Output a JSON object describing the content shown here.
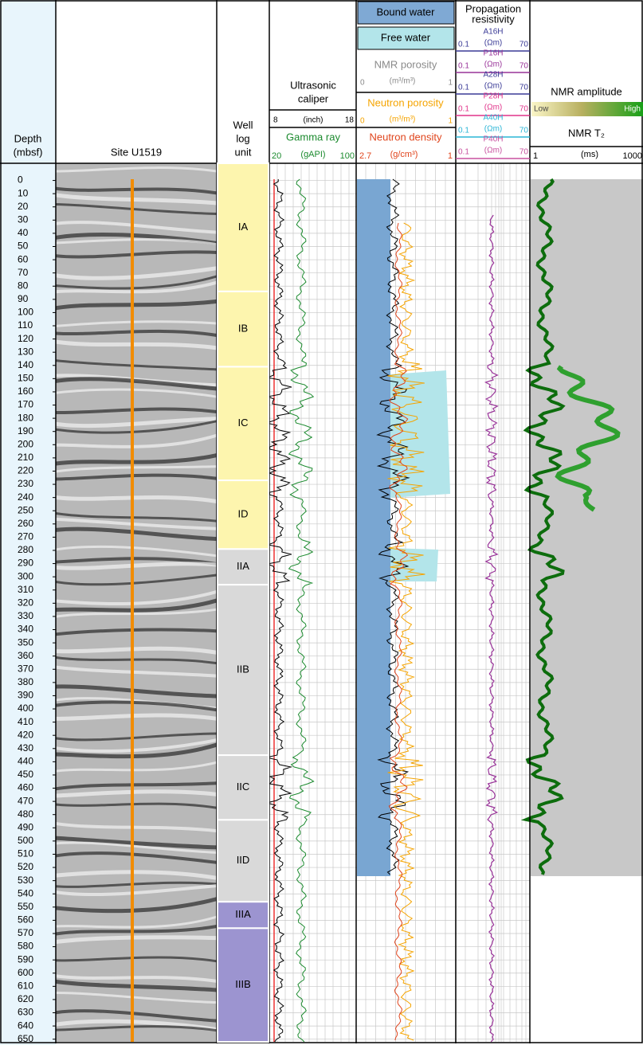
{
  "depth": {
    "title": [
      "Depth",
      "(mbsf)"
    ],
    "ylim": [
      -13,
      652
    ],
    "ticks": [
      0,
      10,
      20,
      30,
      40,
      50,
      60,
      70,
      80,
      90,
      100,
      110,
      120,
      130,
      140,
      150,
      160,
      170,
      180,
      190,
      200,
      210,
      220,
      230,
      240,
      250,
      260,
      270,
      280,
      290,
      300,
      310,
      320,
      330,
      340,
      350,
      360,
      370,
      380,
      390,
      400,
      410,
      420,
      430,
      440,
      450,
      460,
      470,
      480,
      490,
      500,
      510,
      520,
      530,
      540,
      550,
      560,
      570,
      580,
      590,
      600,
      610,
      620,
      630,
      640,
      650
    ]
  },
  "site": "Site U1519",
  "unit_title": [
    "Well",
    "log",
    "unit"
  ],
  "units": [
    {
      "label": "IA",
      "top": -13,
      "base": 84,
      "color": "#fdf5ae"
    },
    {
      "label": "IB",
      "top": 84,
      "base": 141,
      "color": "#fdf5ae"
    },
    {
      "label": "IC",
      "top": 141,
      "base": 227,
      "color": "#fdf5ae"
    },
    {
      "label": "ID",
      "top": 227,
      "base": 279,
      "color": "#fdf5ae"
    },
    {
      "label": "IIA",
      "top": 279,
      "base": 306,
      "color": "#d9d9d9"
    },
    {
      "label": "IIB",
      "top": 306,
      "base": 435,
      "color": "#d9d9d9"
    },
    {
      "label": "IIC",
      "top": 435,
      "base": 484,
      "color": "#d9d9d9"
    },
    {
      "label": "IID",
      "top": 484,
      "base": 546,
      "color": "#d9d9d9"
    },
    {
      "label": "IIIA",
      "top": 546,
      "base": 566,
      "color": "#9c94d0"
    },
    {
      "label": "IIIB",
      "top": 566,
      "base": 652,
      "color": "#9c94d0"
    }
  ],
  "caliper": {
    "title": [
      "Ultrasonic",
      "caliper"
    ],
    "min": 8,
    "unit": "(inch)",
    "max": 18
  },
  "gamma": {
    "title": "Gamma ray",
    "min": 20,
    "unit": "(gAPI)",
    "max": 100
  },
  "nmr": {
    "bound": "Bound water",
    "free": "Free water",
    "porosity": "NMR porosity",
    "por_min": 0,
    "por_unit": "(m³/m³)",
    "por_max": 1,
    "neutron": "Neutron porosity",
    "neu_min": 0,
    "neu_unit": "(m³/m³)",
    "neu_max": 1,
    "density": "Neutron density",
    "den_min": 2.7,
    "den_unit": "(g/cm³)",
    "den_max": 1
  },
  "resistivity": {
    "title": [
      "Propagation",
      "resistivity"
    ],
    "curves": [
      {
        "name": "A16H",
        "color": "#3a3a96",
        "min": 0.1,
        "unit": "(Ωm)",
        "max": 70
      },
      {
        "name": "P16H",
        "color": "#993399",
        "min": 0.1,
        "unit": "(Ωm)",
        "max": 70
      },
      {
        "name": "A28H",
        "color": "#3a3a96",
        "min": 0.1,
        "unit": "(Ωm)",
        "max": 70
      },
      {
        "name": "P28H",
        "color": "#e0338a",
        "min": 0.1,
        "unit": "(Ωm)",
        "max": 70
      },
      {
        "name": "A40H",
        "color": "#2ab5d6",
        "min": 0.1,
        "unit": "(Ωm)",
        "max": 70
      },
      {
        "name": "P40H",
        "color": "#c8509f",
        "min": 0.1,
        "unit": "(Ωm)",
        "max": 70
      }
    ]
  },
  "nmr_t2": {
    "amplitude": "NMR amplitude",
    "low": "Low",
    "high": "High",
    "title": "NMR T₂",
    "min": 1,
    "unit": "(ms)",
    "max": 1000
  }
}
